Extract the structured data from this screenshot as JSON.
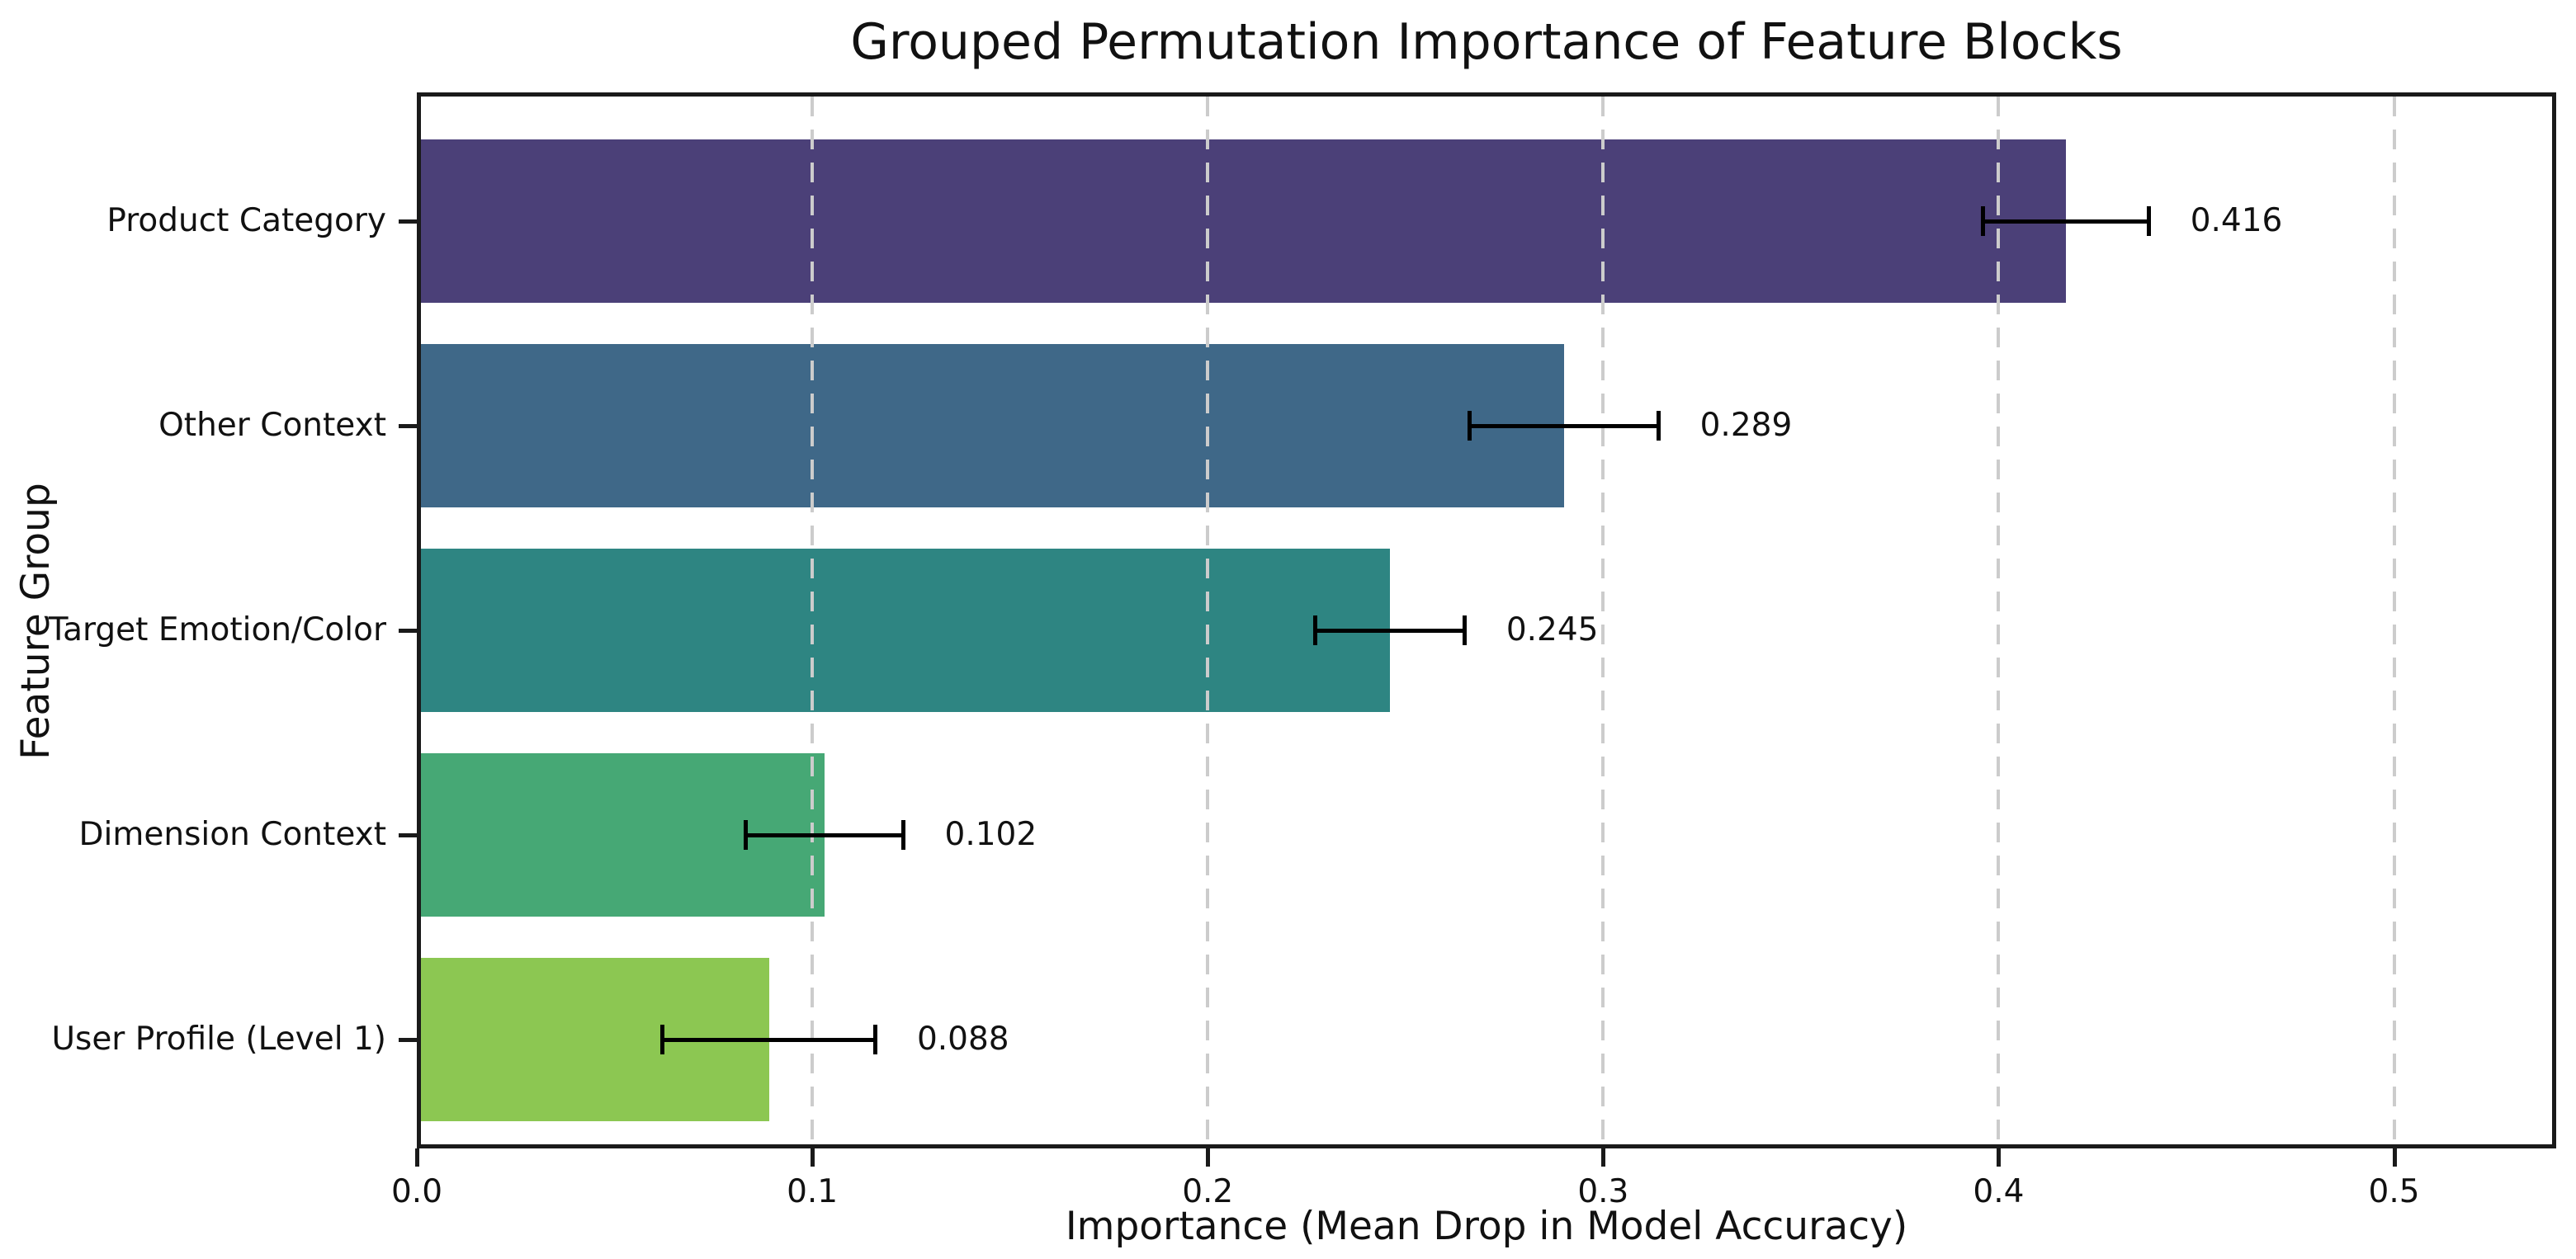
{
  "chart_data": {
    "type": "bar",
    "orientation": "horizontal",
    "title": "Grouped Permutation Importance of Feature Blocks",
    "xlabel": "Importance (Mean Drop in Model Accuracy)",
    "ylabel": "Feature Group",
    "categories": [
      "Product Category",
      "Other Context",
      "Target Emotion/Color",
      "Dimension Context",
      "User Profile (Level 1)"
    ],
    "values": [
      0.416,
      0.289,
      0.245,
      0.102,
      0.088
    ],
    "errors": [
      0.021,
      0.024,
      0.019,
      0.02,
      0.027
    ],
    "value_labels": [
      "0.416",
      "0.289",
      "0.245",
      "0.102",
      "0.088"
    ],
    "bar_colors": [
      "#4b4078",
      "#3f6888",
      "#2e8582",
      "#46a875",
      "#8cc752"
    ],
    "xlim": [
      0,
      0.541
    ],
    "xtick_values": [
      0.0,
      0.1,
      0.2,
      0.3,
      0.4,
      0.5
    ],
    "xtick_labels": [
      "0.0",
      "0.1",
      "0.2",
      "0.3",
      "0.4",
      "0.5"
    ],
    "grid": {
      "axis": "x",
      "style": "dashed",
      "color": "#cccccc"
    },
    "error_bar_color": "#000000",
    "axis_color": "#1a1a1a",
    "background_color": "#ffffff",
    "legend": "none"
  }
}
